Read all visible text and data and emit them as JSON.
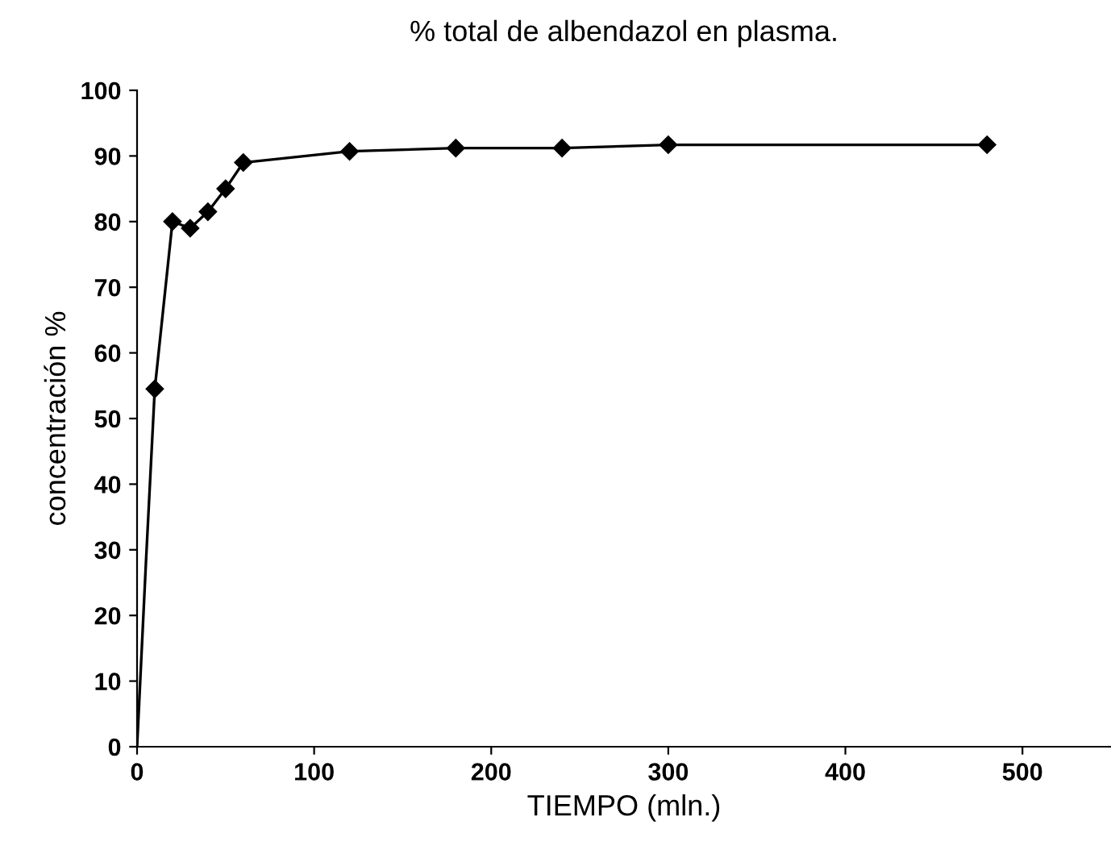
{
  "chart_data": {
    "type": "line",
    "title": "% total de albendazol en plasma.",
    "xlabel": "TIEMPO (mln.)",
    "ylabel": "concentración %",
    "series": [
      {
        "color": "#000000",
        "marker": "none",
        "x": [
          0,
          5,
          10
        ],
        "values": [
          0,
          28,
          54.5
        ]
      },
      {
        "color": "#000000",
        "marker": "diamond",
        "x": [
          10,
          20,
          30,
          40,
          50,
          60,
          120,
          180,
          240,
          300,
          480
        ],
        "values": [
          54.5,
          80,
          79,
          81.5,
          85,
          89,
          90.7,
          91.2,
          91.2,
          91.7,
          91.7
        ]
      }
    ],
    "xlim": [
      0,
      550
    ],
    "ylim": [
      0,
      100
    ],
    "xticks": [
      0,
      100,
      200,
      300,
      400,
      500
    ],
    "yticks": [
      0,
      10,
      20,
      30,
      40,
      50,
      60,
      70,
      80,
      90,
      100
    ],
    "grid": false,
    "legend": false
  }
}
